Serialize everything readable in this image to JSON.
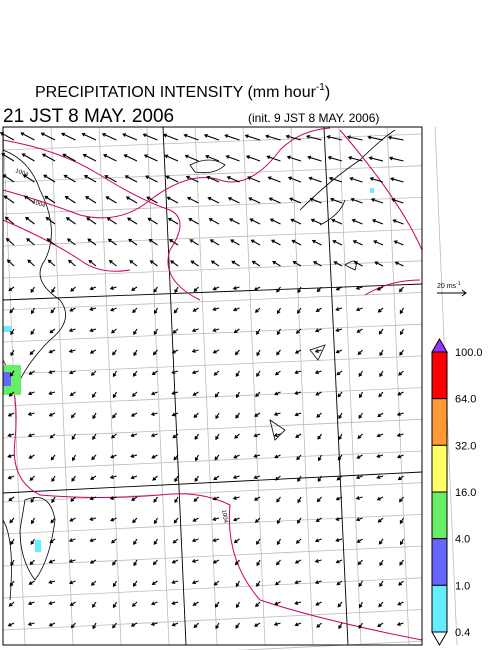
{
  "header": {
    "title": {
      "text": "PRECIPITATION INTENSITY (mm hour",
      "sup": "-1",
      "close": ")"
    },
    "valid_time": "21 JST 8 MAY. 2006",
    "init_time": "(init. 9 JST 8 MAY. 2006)"
  },
  "wind_scale": {
    "text": "20 ms",
    "sup": "-1"
  },
  "contour_labels": [
    "1004",
    "1004",
    "1004"
  ],
  "colorbar": {
    "labels": [
      "100.0",
      "64.0",
      "32.0",
      "16.0",
      "4.0",
      "1.0",
      "0.4"
    ],
    "colors": [
      "#ff0000",
      "#ff9933",
      "#ffff66",
      "#66ee66",
      "#6666ff",
      "#66eeff"
    ],
    "over_color": "#9933ff",
    "under_color": "#ffffff"
  }
}
